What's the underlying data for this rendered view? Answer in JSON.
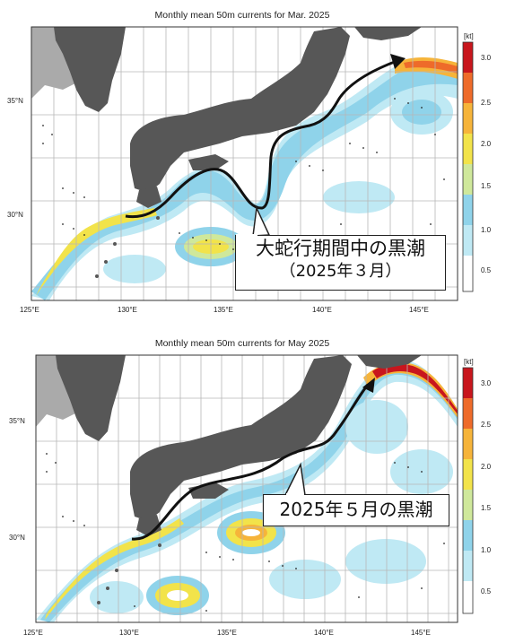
{
  "maps": [
    {
      "title": "Monthly mean 50m currents for Mar. 2025",
      "callout_line1": "大蛇行期間中の黒潮",
      "callout_line2": "（2025年３月）"
    },
    {
      "title": "Monthly mean 50m currents for May 2025",
      "callout_line1": "2025年５月の黒潮",
      "callout_line2": ""
    }
  ],
  "axes": {
    "lon_labels": [
      "125°E",
      "130°E",
      "135°E",
      "140°E",
      "145°E"
    ],
    "lat_labels": [
      "35°N",
      "30°N"
    ]
  },
  "colorbar": {
    "unit": "[kt]",
    "ticks": [
      "3.0",
      "2.5",
      "2.0",
      "1.5",
      "1.0",
      "0.5"
    ],
    "colors": [
      "#ffffff",
      "#bfe9f4",
      "#8fd3ea",
      "#cfe89b",
      "#f2e34a",
      "#f6b43a",
      "#ee6b2a",
      "#c8161d"
    ]
  },
  "colors": {
    "land": "#575757",
    "land_far": "#aaaaaa",
    "grid": "#b7b7b7",
    "track": "#111111"
  }
}
